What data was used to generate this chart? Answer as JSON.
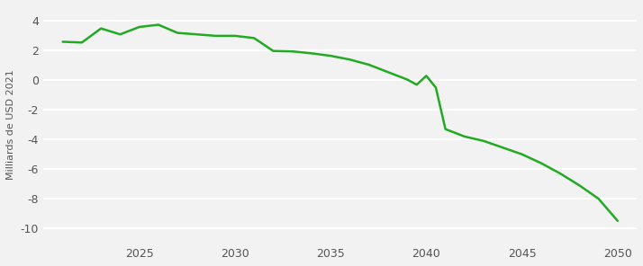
{
  "x": [
    2021,
    2022,
    2023,
    2024,
    2025,
    2026,
    2027,
    2028,
    2029,
    2030,
    2031,
    2032,
    2033,
    2034,
    2035,
    2036,
    2037,
    2038,
    2039,
    2039.5,
    2040,
    2040.5,
    2041,
    2042,
    2043,
    2044,
    2045,
    2046,
    2047,
    2048,
    2049,
    2050
  ],
  "y": [
    2.6,
    2.55,
    3.5,
    3.1,
    3.6,
    3.75,
    3.2,
    3.1,
    3.0,
    3.0,
    2.85,
    1.98,
    1.95,
    1.82,
    1.65,
    1.4,
    1.05,
    0.55,
    0.05,
    -0.3,
    0.3,
    -0.5,
    -3.3,
    -3.8,
    -4.1,
    -4.55,
    -5.0,
    -5.6,
    -6.3,
    -7.1,
    -8.0,
    -9.5
  ],
  "line_color": "#22aa22",
  "line_width": 1.8,
  "ylabel": "Milliards de USD 2021",
  "ylim": [
    -11,
    5
  ],
  "yticks": [
    -10,
    -8,
    -6,
    -4,
    -2,
    0,
    2,
    4
  ],
  "xlim": [
    2020,
    2051
  ],
  "xticks": [
    2025,
    2030,
    2035,
    2040,
    2045,
    2050
  ],
  "background_color": "#f2f2f2",
  "grid_color": "#ffffff"
}
